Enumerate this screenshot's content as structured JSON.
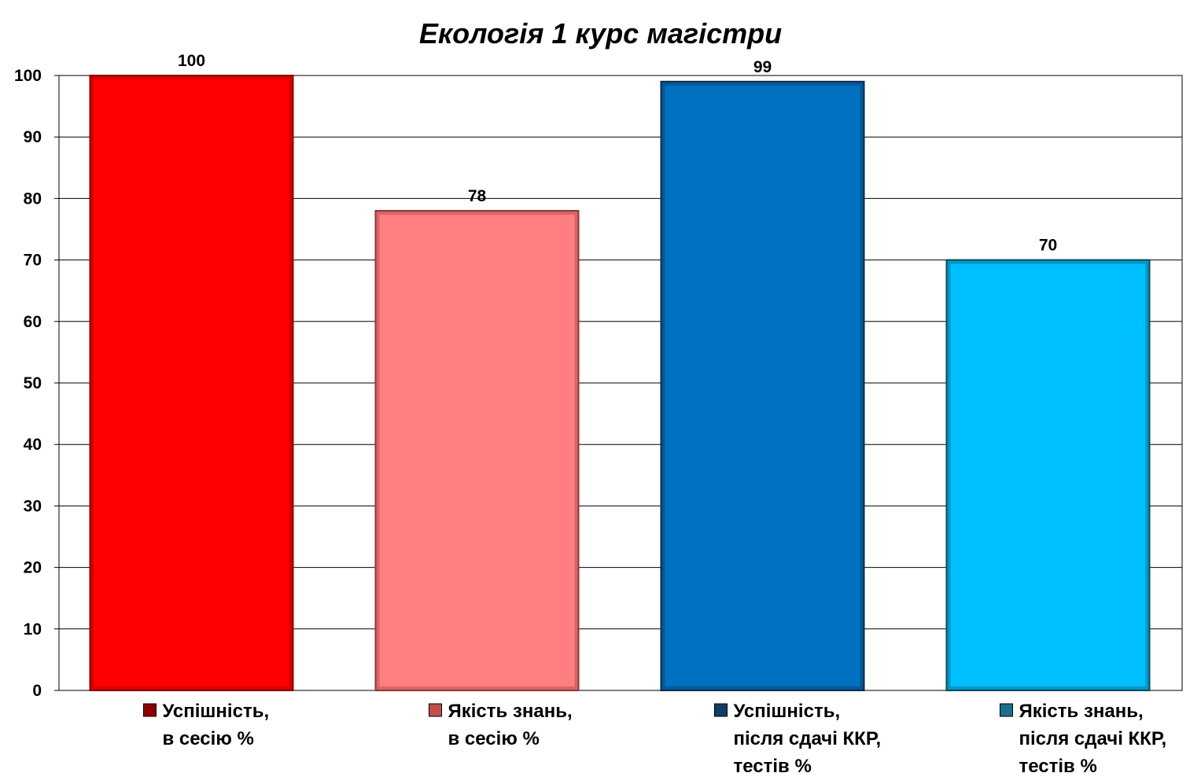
{
  "chart_data": {
    "type": "bar",
    "title": "Екологія 1 курс магістри",
    "xlabel": "",
    "ylabel": "",
    "ylim": [
      0,
      100
    ],
    "yticks": [
      0,
      10,
      20,
      30,
      40,
      50,
      60,
      70,
      80,
      90,
      100
    ],
    "grid": true,
    "legend_placement": "bottom",
    "categories": [
      {
        "label_lines": [
          "Успішність,",
          "в сесію %"
        ],
        "value": 100,
        "color": "#FF0000",
        "border": "#8B0000",
        "marker": "#8B0000"
      },
      {
        "label_lines": [
          "Якість знань,",
          "в сесію %"
        ],
        "value": 78,
        "color": "#FF7F80",
        "border": "#8B3A3A",
        "marker": "#C0504D"
      },
      {
        "label_lines": [
          "Успішність,",
          "після сдачі ККР,",
          "тестів %"
        ],
        "value": 99,
        "color": "#0070C0",
        "border": "#0B2A4A",
        "marker": "#123B66"
      },
      {
        "label_lines": [
          "Якість знань,",
          "після сдачі ККР,",
          "тестів %"
        ],
        "value": 70,
        "color": "#00BFFF",
        "border": "#0B4A5A",
        "marker": "#1F6E8C"
      }
    ]
  }
}
